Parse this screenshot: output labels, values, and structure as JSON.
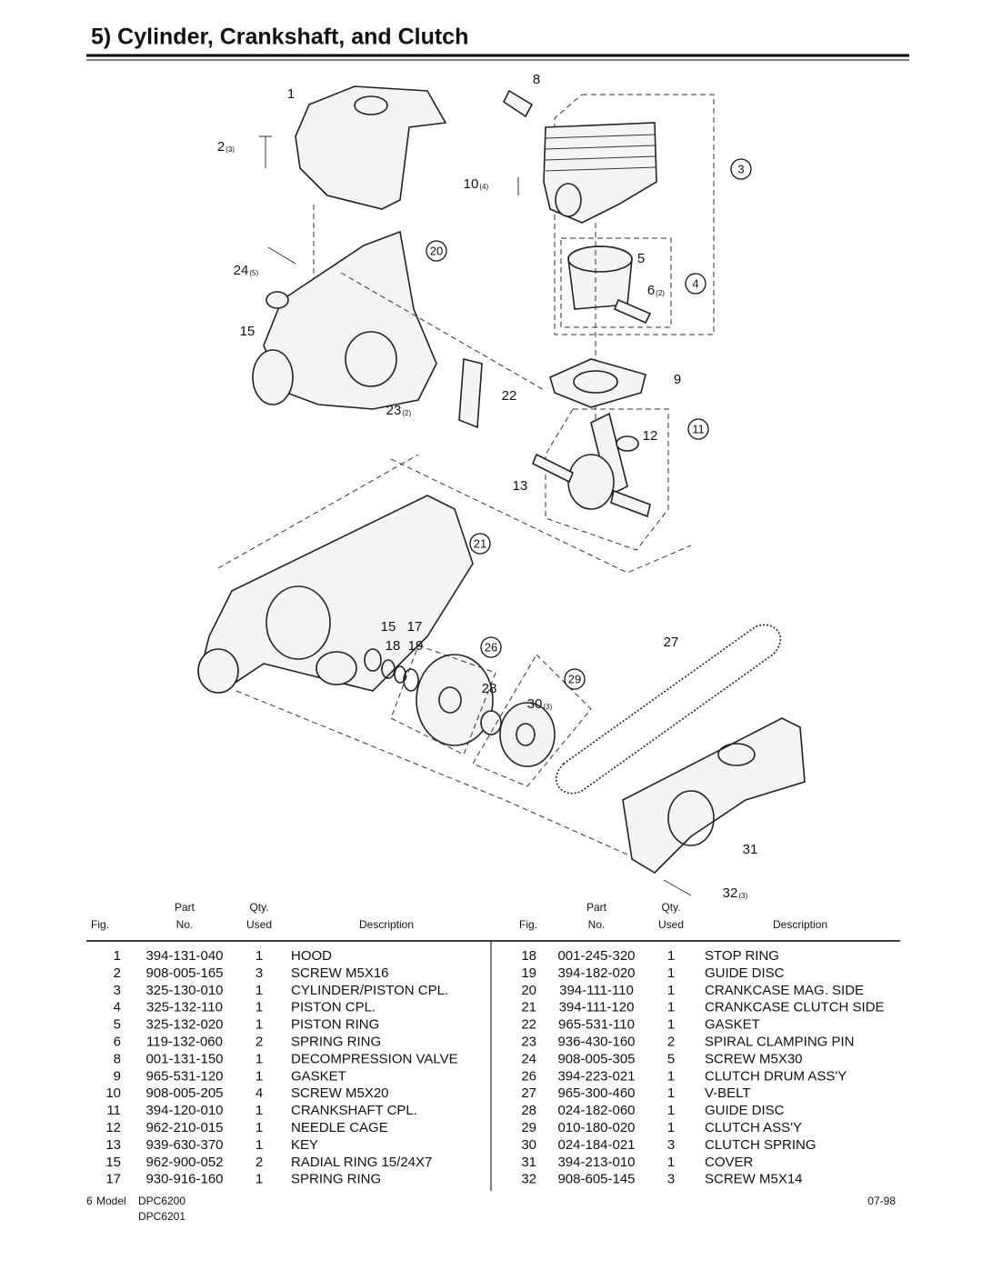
{
  "title": "5) Cylinder, Crankshaft, and Clutch",
  "diagram": {
    "callouts": [
      {
        "text": "1"
      },
      {
        "text": "2",
        "sub": "(3)"
      },
      {
        "text": "8"
      },
      {
        "text": "10",
        "sub": "(4)"
      },
      {
        "text": "24",
        "sub": "(5)"
      },
      {
        "text": "15"
      },
      {
        "text": "5"
      },
      {
        "text": "6",
        "sub": "(2)"
      },
      {
        "text": "9"
      },
      {
        "text": "22"
      },
      {
        "text": "23",
        "sub": "(2)"
      },
      {
        "text": "12"
      },
      {
        "text": "13"
      },
      {
        "text": "15"
      },
      {
        "text": "17"
      },
      {
        "text": "18"
      },
      {
        "text": "19"
      },
      {
        "text": "27"
      },
      {
        "text": "28"
      },
      {
        "text": "30",
        "sub": "(3)"
      },
      {
        "text": "31"
      },
      {
        "text": "32",
        "sub": "(3)"
      }
    ],
    "assembly_callouts": [
      "3",
      "20",
      "4",
      "11",
      "21",
      "26",
      "29"
    ]
  },
  "tables": [
    {
      "header": [
        "Fig.",
        [
          "Part",
          "No."
        ],
        [
          "Qty.",
          "Used"
        ],
        "Description"
      ],
      "rows": [
        [
          "1",
          "394-131-040",
          "1",
          "HOOD"
        ],
        [
          "2",
          "908-005-165",
          "3",
          "SCREW M5X16"
        ],
        [
          "3",
          "325-130-010",
          "1",
          "CYLINDER/PISTON CPL."
        ],
        [
          "4",
          "325-132-110",
          "1",
          "PISTON CPL."
        ],
        [
          "5",
          "325-132-020",
          "1",
          "PISTON RING"
        ],
        [
          "6",
          "119-132-060",
          "2",
          "SPRING RING"
        ],
        [
          "8",
          "001-131-150",
          "1",
          "DECOMPRESSION VALVE"
        ],
        [
          "9",
          "965-531-120",
          "1",
          "GASKET"
        ],
        [
          "10",
          "908-005-205",
          "4",
          "SCREW M5X20"
        ],
        [
          "11",
          "394-120-010",
          "1",
          "CRANKSHAFT CPL."
        ],
        [
          "12",
          "962-210-015",
          "1",
          "NEEDLE CAGE"
        ],
        [
          "13",
          "939-630-370",
          "1",
          "KEY"
        ],
        [
          "15",
          "962-900-052",
          "2",
          "RADIAL RING 15/24X7"
        ],
        [
          "17",
          "930-916-160",
          "1",
          "SPRING RING"
        ]
      ]
    },
    {
      "header": [
        "Fig.",
        [
          "Part",
          "No."
        ],
        [
          "Qty.",
          "Used"
        ],
        "Description"
      ],
      "rows": [
        [
          "18",
          "001-245-320",
          "1",
          "STOP RING"
        ],
        [
          "19",
          "394-182-020",
          "1",
          "GUIDE DISC"
        ],
        [
          "20",
          "394-111-110",
          "1",
          "CRANKCASE MAG. SIDE"
        ],
        [
          "21",
          "394-111-120",
          "1",
          "CRANKCASE CLUTCH SIDE"
        ],
        [
          "22",
          "965-531-110",
          "1",
          "GASKET"
        ],
        [
          "23",
          "936-430-160",
          "2",
          "SPIRAL CLAMPING PIN"
        ],
        [
          "24",
          "908-005-305",
          "5",
          "SCREW M5X30"
        ],
        [
          "26",
          "394-223-021",
          "1",
          "CLUTCH DRUM ASS'Y"
        ],
        [
          "27",
          "965-300-460",
          "1",
          "V-BELT"
        ],
        [
          "28",
          "024-182-060",
          "1",
          "GUIDE DISC"
        ],
        [
          "29",
          "010-180-020",
          "1",
          "CLUTCH ASS'Y"
        ],
        [
          "30",
          "024-184-021",
          "3",
          "CLUTCH SPRING"
        ],
        [
          "31",
          "394-213-010",
          "1",
          "COVER"
        ],
        [
          "32",
          "908-605-145",
          "3",
          "SCREW M5X14"
        ]
      ]
    }
  ],
  "footer": {
    "page": "6",
    "model_label": "Model",
    "models": [
      "DPC6200",
      "DPC6201"
    ],
    "date": "07-98"
  }
}
